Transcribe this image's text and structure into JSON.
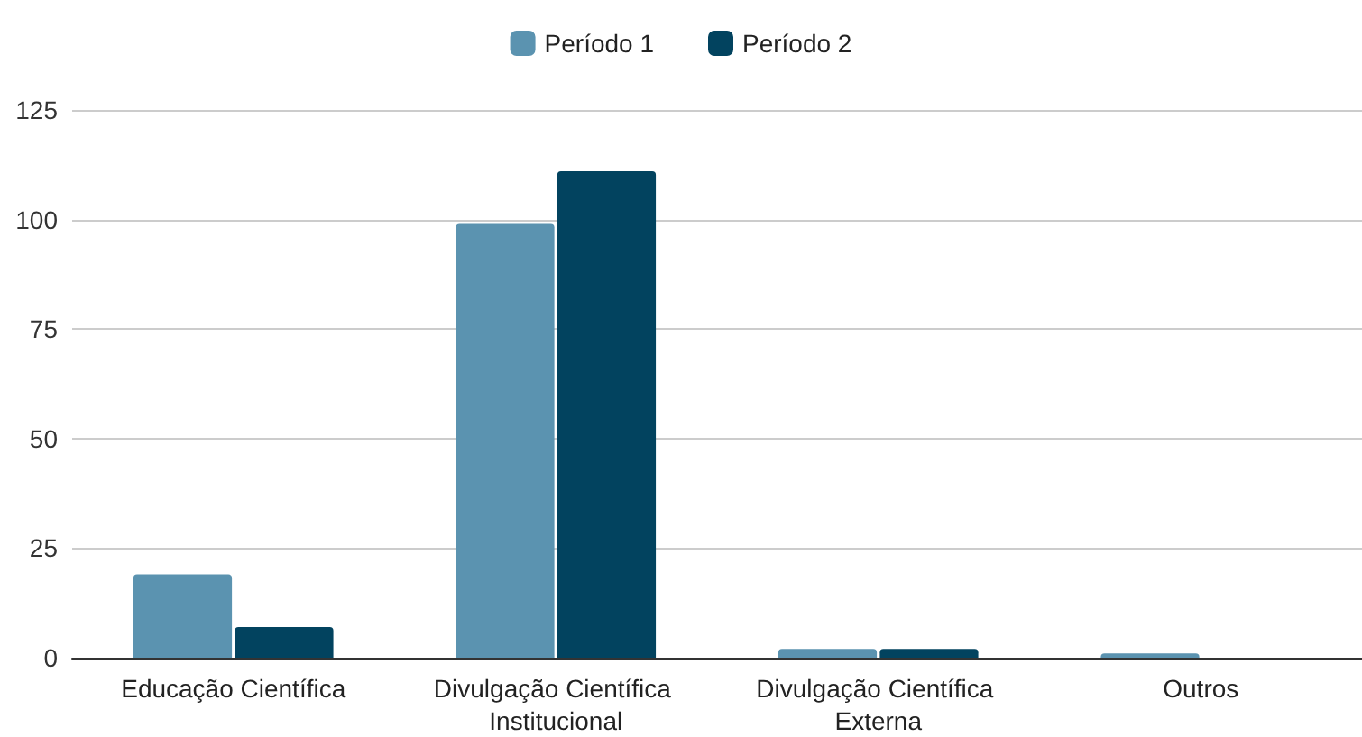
{
  "chart_data": {
    "type": "bar",
    "categories": [
      "Educação Científica",
      "Divulgação Científica Institucional",
      "Divulgação Científica Externa",
      "Outros"
    ],
    "series": [
      {
        "name": "Período 1",
        "color": "#5b93b0",
        "values": [
          19,
          99,
          2,
          1
        ]
      },
      {
        "name": "Período 2",
        "color": "#02435f",
        "values": [
          7,
          111,
          2,
          0
        ]
      }
    ],
    "ylim": [
      0,
      125
    ],
    "yticks": [
      0,
      25,
      50,
      75,
      100,
      125
    ],
    "grid": "y",
    "legend": "top"
  }
}
